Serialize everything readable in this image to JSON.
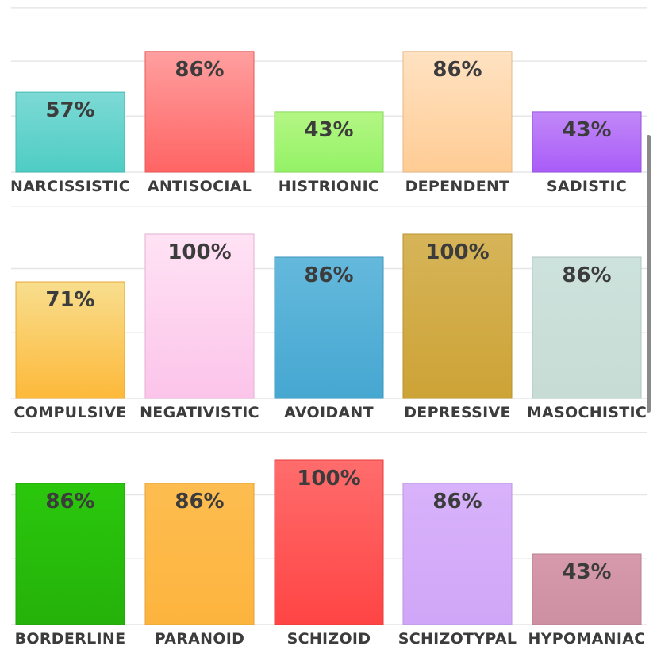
{
  "chart_data": [
    {
      "type": "bar",
      "categories": [
        "NARCISSISTIC",
        "ANTISOCIAL",
        "HISTRIONIC",
        "DEPENDENT",
        "SADISTIC"
      ],
      "values": [
        57,
        86,
        43,
        86,
        43
      ],
      "value_labels": [
        "57%",
        "86%",
        "43%",
        "86%",
        "43%"
      ],
      "colors": [
        [
          "#7dd9d5",
          "#4ecdc4"
        ],
        [
          "#ff9f9f",
          "#ff6464"
        ],
        [
          "#b4f684",
          "#94f266"
        ],
        [
          "#ffe2c2",
          "#ffcc94"
        ],
        [
          "#c188f8",
          "#a95cf8"
        ]
      ],
      "ylim": [
        0,
        100
      ],
      "grid": true
    },
    {
      "type": "bar",
      "categories": [
        "COMPULSIVE",
        "NEGATIVISTIC",
        "AVOIDANT",
        "DEPRESSIVE",
        "MASOCHISTIC"
      ],
      "values": [
        71,
        100,
        86,
        100,
        86
      ],
      "value_labels": [
        "71%",
        "100%",
        "86%",
        "100%",
        "86%"
      ],
      "colors": [
        [
          "#f8de8e",
          "#fdb93a"
        ],
        [
          "#ffe2f4",
          "#fcc4ea"
        ],
        [
          "#64b9dc",
          "#46a7d1"
        ],
        [
          "#d6b458",
          "#cda336"
        ],
        [
          "#cde2dc",
          "#c6dcd4"
        ]
      ],
      "ylim": [
        0,
        100
      ],
      "grid": true
    },
    {
      "type": "bar",
      "categories": [
        "BORDERLINE",
        "PARANOID",
        "SCHIZOID",
        "SCHIZOTYPAL",
        "HYPOMANIAC"
      ],
      "values": [
        86,
        86,
        100,
        86,
        43
      ],
      "value_labels": [
        "86%",
        "86%",
        "100%",
        "86%",
        "43%"
      ],
      "colors": [
        [
          "#2ac70c",
          "#25b20a"
        ],
        [
          "#fdbd50",
          "#fdb43e"
        ],
        [
          "#ff6c6c",
          "#ff4444"
        ],
        [
          "#d8b2fa",
          "#d0a6f8"
        ],
        [
          "#d69aac",
          "#cd8fa2"
        ]
      ],
      "ylim": [
        0,
        100
      ],
      "grid": true
    }
  ]
}
